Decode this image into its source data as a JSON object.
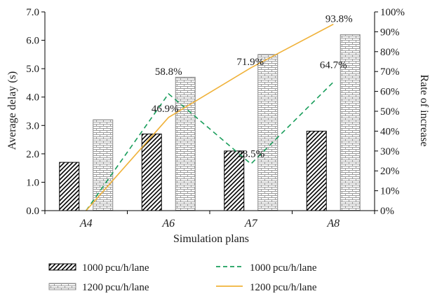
{
  "chart_data": {
    "type": "bar+line",
    "categories": [
      "A4",
      "A6",
      "A7",
      "A8"
    ],
    "xlabel": "Simulation plans",
    "ylabel": "Average delay (s)",
    "y2label": "Rate of increase",
    "ylim": [
      0,
      7
    ],
    "yticks": [
      "0.0",
      "1.0",
      "2.0",
      "3.0",
      "4.0",
      "5.0",
      "6.0",
      "7.0"
    ],
    "y2lim": [
      0,
      100
    ],
    "y2ticks": [
      "0%",
      "10%",
      "20%",
      "30%",
      "40%",
      "50%",
      "60%",
      "70%",
      "80%",
      "90%",
      "100%"
    ],
    "grid": false,
    "legend_position": "bottom",
    "bar_series": [
      {
        "name": "1000 pcu/h/lane",
        "values": [
          1.7,
          2.7,
          2.1,
          2.8
        ],
        "pattern": "diagonal-hatch",
        "color": "#000000"
      },
      {
        "name": "1200 pcu/h/lane",
        "values": [
          3.2,
          4.7,
          5.5,
          6.2
        ],
        "pattern": "brick",
        "color": "#8c8c8c"
      }
    ],
    "line_series": [
      {
        "name": "1000 pcu/h/lane",
        "values": [
          0,
          58.8,
          23.5,
          64.7
        ],
        "labels": [
          "",
          "58.8%",
          "23.5%",
          "64.7%"
        ],
        "style": "dashed",
        "color": "#1a9e5c"
      },
      {
        "name": "1200 pcu/h/lane",
        "values": [
          0,
          46.9,
          71.9,
          93.8
        ],
        "labels": [
          "",
          "46.9%",
          "71.9%",
          "93.8%"
        ],
        "style": "solid",
        "color": "#f0b23a"
      }
    ]
  }
}
